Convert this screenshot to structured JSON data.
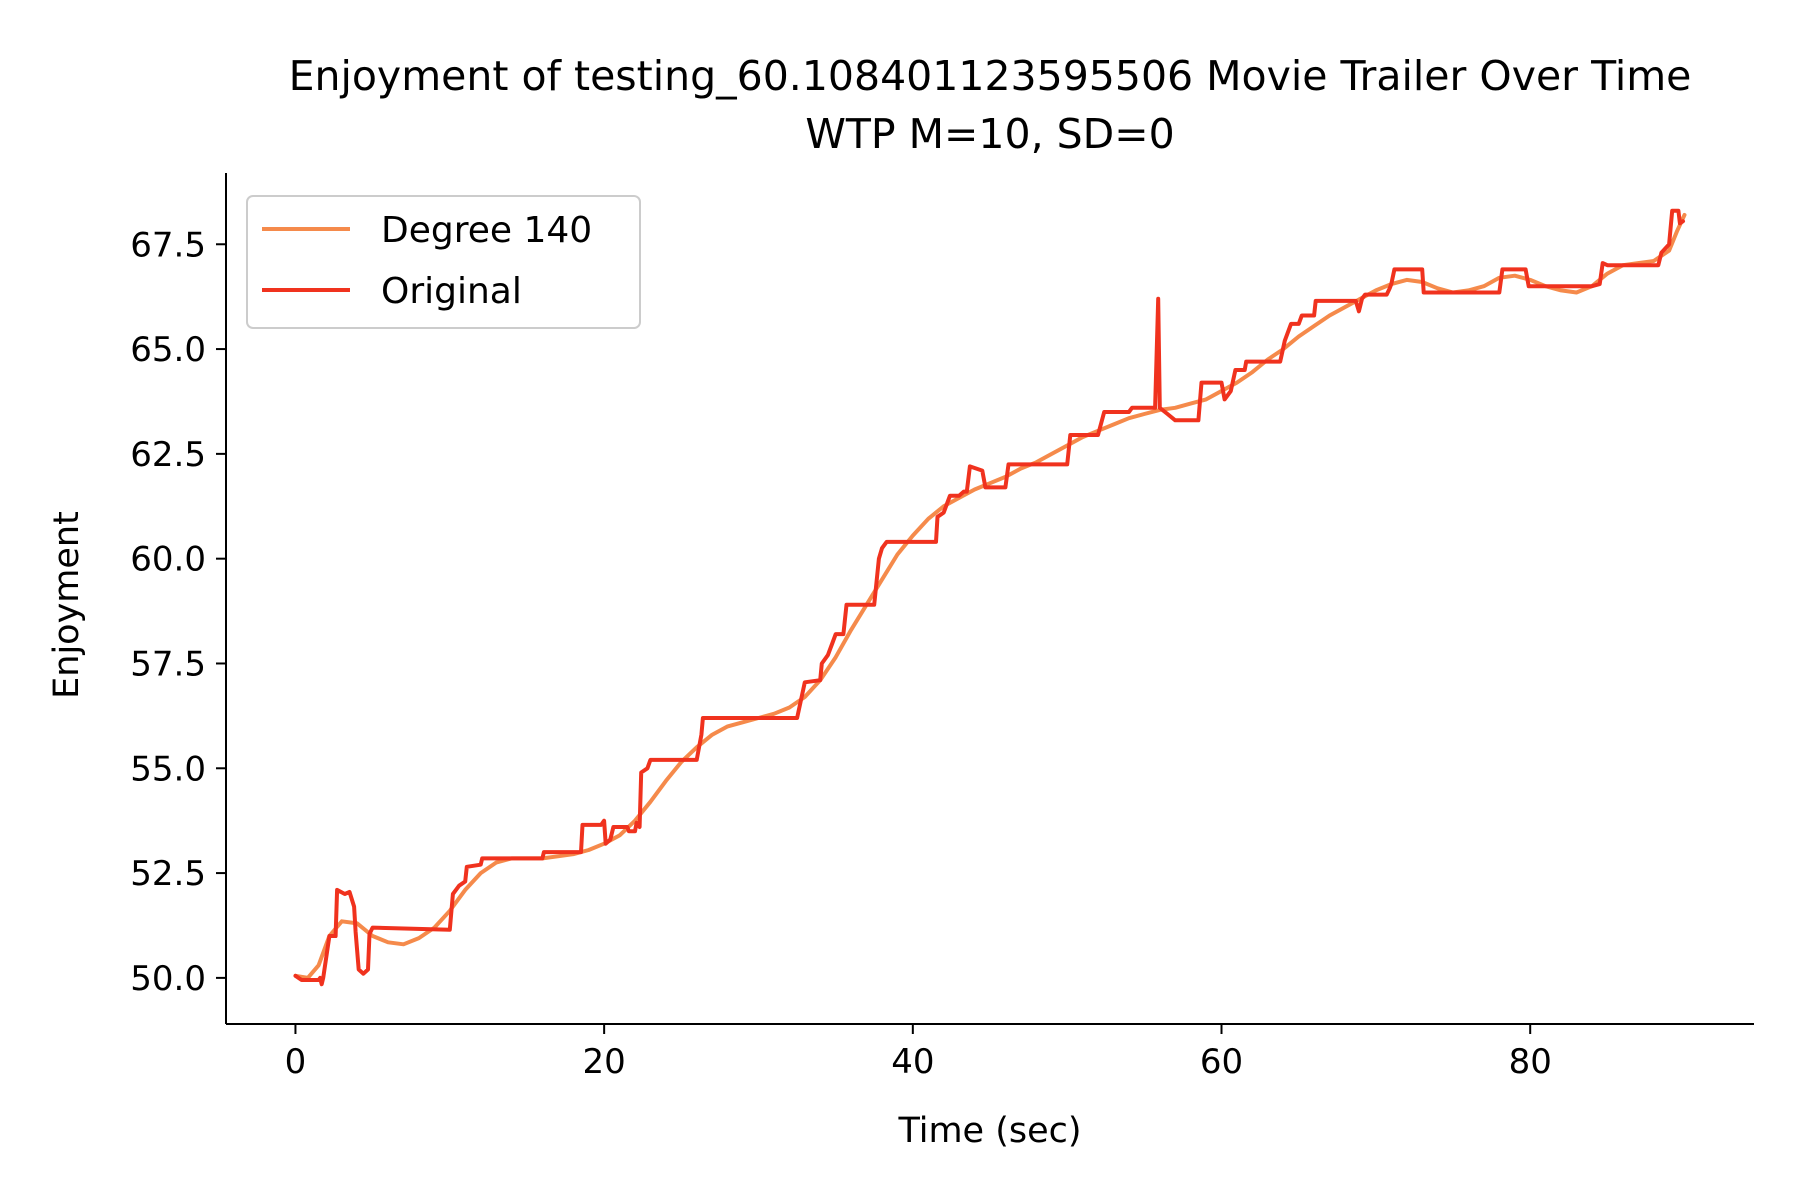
{
  "chart_data": {
    "type": "line",
    "title": "Enjoyment of testing_60.108401123595506 Movie Trailer Over Time",
    "subtitle": "WTP M=10, SD=0",
    "xlabel": "Time (sec)",
    "ylabel": "Enjoyment",
    "xlim": [
      -4.5,
      94.5
    ],
    "ylim": [
      48.9,
      69.2
    ],
    "x_ticks": [
      0,
      20,
      40,
      60,
      80
    ],
    "x_tick_labels": [
      "0",
      "20",
      "40",
      "60",
      "80"
    ],
    "y_ticks": [
      50.0,
      52.5,
      55.0,
      57.5,
      60.0,
      62.5,
      65.0,
      67.5
    ],
    "y_tick_labels": [
      "50.0",
      "52.5",
      "55.0",
      "57.5",
      "60.0",
      "62.5",
      "65.0",
      "67.5"
    ],
    "grid": false,
    "legend_position": "top-left",
    "series": [
      {
        "name": "Degree 140",
        "color": "#f58a4b",
        "points": [
          [
            0,
            50.05
          ],
          [
            0.8,
            50.0
          ],
          [
            1.5,
            50.3
          ],
          [
            2.2,
            51.0
          ],
          [
            3,
            51.35
          ],
          [
            4,
            51.3
          ],
          [
            5,
            51.0
          ],
          [
            6,
            50.85
          ],
          [
            7,
            50.8
          ],
          [
            8,
            50.95
          ],
          [
            9,
            51.2
          ],
          [
            10,
            51.6
          ],
          [
            11,
            52.1
          ],
          [
            12,
            52.5
          ],
          [
            13,
            52.75
          ],
          [
            14,
            52.85
          ],
          [
            15,
            52.85
          ],
          [
            16,
            52.85
          ],
          [
            17,
            52.9
          ],
          [
            18,
            52.95
          ],
          [
            19,
            53.05
          ],
          [
            20,
            53.2
          ],
          [
            21,
            53.4
          ],
          [
            22,
            53.75
          ],
          [
            23,
            54.2
          ],
          [
            24,
            54.7
          ],
          [
            25,
            55.15
          ],
          [
            26,
            55.5
          ],
          [
            27,
            55.8
          ],
          [
            28,
            56.0
          ],
          [
            29,
            56.1
          ],
          [
            30,
            56.2
          ],
          [
            31,
            56.3
          ],
          [
            32,
            56.45
          ],
          [
            33,
            56.7
          ],
          [
            34,
            57.1
          ],
          [
            35,
            57.65
          ],
          [
            36,
            58.3
          ],
          [
            37,
            58.9
          ],
          [
            38,
            59.5
          ],
          [
            39,
            60.1
          ],
          [
            40,
            60.55
          ],
          [
            41,
            60.95
          ],
          [
            42,
            61.25
          ],
          [
            43,
            61.45
          ],
          [
            44,
            61.65
          ],
          [
            45,
            61.8
          ],
          [
            46,
            61.95
          ],
          [
            47,
            62.15
          ],
          [
            48,
            62.3
          ],
          [
            49,
            62.5
          ],
          [
            50,
            62.7
          ],
          [
            51,
            62.9
          ],
          [
            52,
            63.05
          ],
          [
            53,
            63.2
          ],
          [
            54,
            63.35
          ],
          [
            55,
            63.45
          ],
          [
            56,
            63.55
          ],
          [
            57,
            63.6
          ],
          [
            58,
            63.7
          ],
          [
            59,
            63.8
          ],
          [
            60,
            64.0
          ],
          [
            61,
            64.2
          ],
          [
            62,
            64.45
          ],
          [
            63,
            64.75
          ],
          [
            64,
            65.0
          ],
          [
            65,
            65.3
          ],
          [
            66,
            65.55
          ],
          [
            67,
            65.8
          ],
          [
            68,
            66.0
          ],
          [
            69,
            66.2
          ],
          [
            70,
            66.4
          ],
          [
            71,
            66.55
          ],
          [
            72,
            66.65
          ],
          [
            73,
            66.6
          ],
          [
            74,
            66.45
          ],
          [
            75,
            66.35
          ],
          [
            76,
            66.4
          ],
          [
            77,
            66.5
          ],
          [
            78,
            66.7
          ],
          [
            79,
            66.75
          ],
          [
            80,
            66.65
          ],
          [
            81,
            66.5
          ],
          [
            82,
            66.4
          ],
          [
            83,
            66.35
          ],
          [
            84,
            66.5
          ],
          [
            85,
            66.8
          ],
          [
            86,
            67.0
          ],
          [
            87,
            67.05
          ],
          [
            88,
            67.1
          ],
          [
            89,
            67.35
          ],
          [
            89.5,
            67.8
          ],
          [
            90,
            68.2
          ]
        ]
      },
      {
        "name": "Original",
        "color": "#f0321e",
        "points": [
          [
            0,
            50.05
          ],
          [
            0.4,
            49.95
          ],
          [
            1.5,
            49.95
          ],
          [
            1.6,
            50.0
          ],
          [
            1.7,
            49.85
          ],
          [
            1.8,
            50.0
          ],
          [
            2.0,
            50.5
          ],
          [
            2.2,
            51.0
          ],
          [
            2.6,
            51.0
          ],
          [
            2.7,
            52.1
          ],
          [
            3.2,
            52.0
          ],
          [
            3.5,
            52.05
          ],
          [
            3.8,
            51.7
          ],
          [
            3.9,
            51.1
          ],
          [
            4.1,
            50.2
          ],
          [
            4.4,
            50.1
          ],
          [
            4.7,
            50.2
          ],
          [
            4.8,
            51.05
          ],
          [
            5.0,
            51.2
          ],
          [
            10.0,
            51.15
          ],
          [
            10.2,
            52.0
          ],
          [
            10.6,
            52.2
          ],
          [
            11.0,
            52.3
          ],
          [
            11.1,
            52.65
          ],
          [
            12.0,
            52.7
          ],
          [
            12.1,
            52.85
          ],
          [
            16.0,
            52.85
          ],
          [
            16.1,
            53.0
          ],
          [
            18.5,
            53.0
          ],
          [
            18.6,
            53.65
          ],
          [
            19.8,
            53.65
          ],
          [
            20.0,
            53.75
          ],
          [
            20.1,
            53.2
          ],
          [
            20.4,
            53.3
          ],
          [
            20.6,
            53.6
          ],
          [
            21.5,
            53.6
          ],
          [
            21.6,
            53.5
          ],
          [
            22.0,
            53.5
          ],
          [
            22.1,
            53.7
          ],
          [
            22.3,
            53.6
          ],
          [
            22.4,
            54.9
          ],
          [
            22.8,
            55.0
          ],
          [
            23.0,
            55.2
          ],
          [
            26.0,
            55.2
          ],
          [
            26.3,
            55.8
          ],
          [
            26.4,
            56.2
          ],
          [
            32.5,
            56.2
          ],
          [
            33.0,
            57.05
          ],
          [
            34.0,
            57.1
          ],
          [
            34.1,
            57.5
          ],
          [
            34.5,
            57.7
          ],
          [
            34.8,
            58.0
          ],
          [
            35.0,
            58.2
          ],
          [
            35.5,
            58.2
          ],
          [
            35.7,
            58.9
          ],
          [
            37.5,
            58.9
          ],
          [
            37.8,
            60.0
          ],
          [
            38.0,
            60.25
          ],
          [
            38.3,
            60.4
          ],
          [
            41.5,
            60.4
          ],
          [
            41.6,
            61.0
          ],
          [
            42.0,
            61.1
          ],
          [
            42.4,
            61.5
          ],
          [
            43.0,
            61.5
          ],
          [
            43.3,
            61.6
          ],
          [
            43.5,
            61.6
          ],
          [
            43.7,
            62.2
          ],
          [
            44.5,
            62.1
          ],
          [
            44.7,
            61.7
          ],
          [
            46.0,
            61.7
          ],
          [
            46.2,
            62.25
          ],
          [
            50.0,
            62.25
          ],
          [
            50.2,
            62.95
          ],
          [
            52.0,
            62.95
          ],
          [
            52.4,
            63.5
          ],
          [
            54.0,
            63.5
          ],
          [
            54.2,
            63.6
          ],
          [
            55.7,
            63.6
          ],
          [
            55.9,
            66.2
          ],
          [
            56.0,
            63.6
          ],
          [
            56.5,
            63.45
          ],
          [
            57.0,
            63.3
          ],
          [
            58.5,
            63.3
          ],
          [
            58.7,
            64.2
          ],
          [
            60.0,
            64.2
          ],
          [
            60.2,
            63.8
          ],
          [
            60.6,
            64.0
          ],
          [
            60.9,
            64.5
          ],
          [
            61.5,
            64.5
          ],
          [
            61.6,
            64.7
          ],
          [
            63.8,
            64.7
          ],
          [
            64.1,
            65.2
          ],
          [
            64.5,
            65.6
          ],
          [
            65.0,
            65.6
          ],
          [
            65.2,
            65.8
          ],
          [
            66.0,
            65.8
          ],
          [
            66.1,
            66.15
          ],
          [
            68.7,
            66.15
          ],
          [
            68.9,
            65.9
          ],
          [
            69.1,
            66.2
          ],
          [
            69.3,
            66.3
          ],
          [
            70.7,
            66.3
          ],
          [
            70.9,
            66.45
          ],
          [
            71.0,
            66.55
          ],
          [
            71.2,
            66.9
          ],
          [
            73.0,
            66.9
          ],
          [
            73.1,
            66.35
          ],
          [
            78.0,
            66.35
          ],
          [
            78.2,
            66.9
          ],
          [
            79.7,
            66.9
          ],
          [
            79.9,
            66.5
          ],
          [
            84.0,
            66.5
          ],
          [
            84.5,
            66.55
          ],
          [
            84.7,
            67.05
          ],
          [
            85.0,
            67.0
          ],
          [
            88.3,
            67.0
          ],
          [
            88.5,
            67.3
          ],
          [
            89.0,
            67.5
          ],
          [
            89.2,
            68.3
          ],
          [
            89.6,
            68.3
          ],
          [
            89.7,
            68.0
          ],
          [
            89.9,
            68.05
          ]
        ]
      }
    ]
  }
}
